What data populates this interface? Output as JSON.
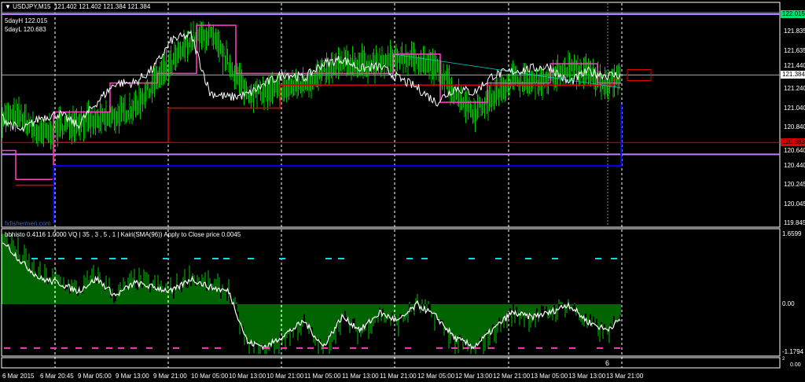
{
  "header": {
    "symbol": "USDJPY,M15",
    "ohlc": "121.402 121.402 121.384 121.384"
  },
  "info": {
    "high_label": "5dayH 122.015",
    "low_label": "5dayL 120.683"
  },
  "watermark": "fxfishermen.com",
  "indicator": {
    "text": "bbhisto 0.4116 1.0000  VQ  |  35 , 3 , 5 , 1  |    Kairi(SMA(96)) Apply to Close price 0.0045"
  },
  "price_axis": {
    "ticks": [
      "121.835",
      "121.635",
      "121.440",
      "121.240",
      "121.040",
      "120.840",
      "120.640",
      "120.440",
      "120.245",
      "120.045",
      "119.845"
    ],
    "tick_values": [
      121.835,
      121.635,
      121.44,
      121.24,
      121.04,
      120.84,
      120.64,
      120.44,
      120.245,
      120.045,
      119.845
    ],
    "high_tag": "122.015",
    "current_tag": "121.384",
    "low_tag": "120.683",
    "high_value": 122.015,
    "current_value": 121.384,
    "low_value": 120.683,
    "purple_low_value": 120.56
  },
  "osc_axis": {
    "top": "1.6599",
    "zero": "0.00",
    "bottom": "-1.1794",
    "top_value": 1.6599,
    "bottom_value": -1.1794
  },
  "sub2": {
    "label": "6",
    "axis_top": "2",
    "axis_zero": "0.00"
  },
  "time_axis": [
    "6 Mar 2015",
    "6 Mar 20:45",
    "9 Mar 05:00",
    "9 Mar 13:00",
    "9 Mar 21:00",
    "10 Mar 05:00",
    "10 Mar 13:00",
    "10 Mar 21:00",
    "11 Mar 05:00",
    "11 Mar 13:00",
    "11 Mar 21:00",
    "12 Mar 05:00",
    "12 Mar 13:00",
    "12 Mar 21:00",
    "13 Mar 05:00",
    "13 Mar 13:00",
    "13 Mar 21:00"
  ],
  "colors": {
    "bars": "#00c800",
    "overlay": "#ffffff",
    "magenta": "#ff40c0",
    "red": "#e00000",
    "blue": "#0000ff",
    "purple": "#c080ff",
    "cyan": "#00e0e0",
    "high_tag": "#00e070",
    "low_tag": "#e00000"
  },
  "series": {
    "overlay_prices": [
      120.94,
      120.8,
      120.94,
      120.98,
      120.86,
      121.1,
      121.3,
      121.3,
      121.45,
      121.75,
      121.8,
      121.2,
      121.15,
      121.18,
      121.3,
      121.4,
      121.35,
      121.5,
      121.55,
      121.45,
      121.47,
      121.35,
      121.25,
      121.1,
      121.25,
      121.2,
      121.38,
      121.42,
      121.45,
      121.47,
      121.3,
      121.42,
      121.38,
      121.384
    ],
    "bar_prices": [
      120.95,
      120.95,
      120.75,
      120.85,
      120.9,
      120.9,
      120.95,
      121.05,
      121.3,
      121.5,
      121.75,
      121.8,
      121.5,
      121.2,
      121.2,
      121.25,
      121.3,
      121.4,
      121.5,
      121.5,
      121.5,
      121.55,
      121.55,
      121.45,
      121.2,
      121.0,
      121.15,
      121.35,
      121.3,
      121.35,
      121.45,
      121.4,
      121.3,
      121.38
    ],
    "oscillator": [
      1.5,
      1.0,
      0.6,
      0.5,
      0.3,
      0.6,
      0.2,
      0.5,
      0.4,
      0.3,
      0.6,
      0.4,
      0.3,
      -0.9,
      -1.0,
      -0.7,
      -0.4,
      -1.0,
      -0.3,
      -0.6,
      -0.2,
      -0.4,
      0.0,
      -0.3,
      -0.8,
      -1.0,
      -0.6,
      -0.2,
      -0.3,
      -0.2,
      0.0,
      -0.4,
      -0.6,
      -0.3
    ]
  }
}
